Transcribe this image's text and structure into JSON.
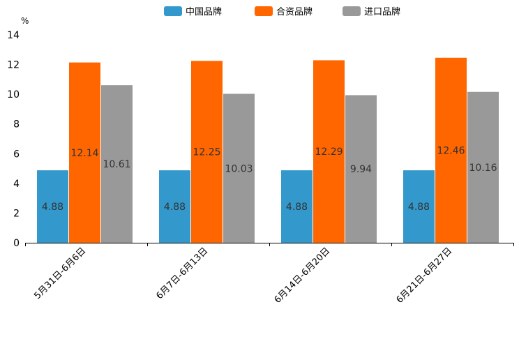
{
  "chart_data": {
    "type": "bar",
    "title": "",
    "xlabel": "",
    "ylabel": "%",
    "ylim": [
      0,
      14
    ],
    "yticks": [
      0,
      2,
      4,
      6,
      8,
      10,
      12,
      14
    ],
    "grid": false,
    "legend_position": "top-center",
    "categories": [
      "5月31日-6月6日",
      "6月7日-6月13日",
      "6月14日-6月20日",
      "6月21日-6月27日"
    ],
    "series": [
      {
        "name": "中国品牌",
        "color": "#3399cc",
        "values": [
          4.88,
          4.88,
          4.88,
          4.88
        ],
        "labels": [
          "4.88",
          "4.88",
          "4.88",
          "4.88"
        ]
      },
      {
        "name": "合资品牌",
        "color": "#ff6600",
        "values": [
          12.14,
          12.25,
          12.29,
          12.46
        ],
        "labels": [
          "12.14",
          "12.25",
          "12.29",
          "12.46"
        ]
      },
      {
        "name": "进口品牌",
        "color": "#999999",
        "values": [
          10.61,
          10.03,
          9.94,
          10.16
        ],
        "labels": [
          "10.61",
          "10.03",
          "9.94",
          "10.16"
        ]
      }
    ]
  }
}
